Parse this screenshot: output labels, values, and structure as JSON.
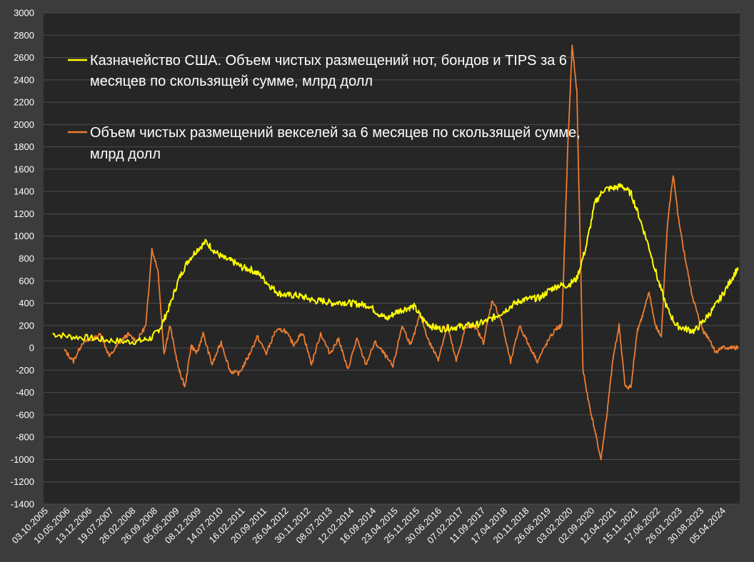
{
  "colors": {
    "background": "#3c3c3c",
    "plot_background": "#262626",
    "gridline": "#4e4e4e",
    "axis_text": "#ffffff",
    "series_notes_bonds": "#ffff00",
    "series_bills": "#ed7d31"
  },
  "chart_data": {
    "type": "line",
    "title": "",
    "xlabel": "",
    "ylabel": "",
    "ylim": [
      -1400,
      3000
    ],
    "y_ticks": [
      3000,
      2800,
      2600,
      2400,
      2200,
      2000,
      1800,
      1600,
      1400,
      1200,
      1000,
      800,
      600,
      400,
      200,
      0,
      -200,
      -400,
      -600,
      -800,
      -1000,
      -1200,
      -1400
    ],
    "x_range": [
      "2005-10-03",
      "2025-01-01"
    ],
    "x_tick_labels": [
      "03.10.2005",
      "10.05.2006",
      "13.12.2006",
      "19.07.2007",
      "26.02.2008",
      "26.09.2008",
      "05.05.2009",
      "08.12.2009",
      "14.07.2010",
      "16.02.2011",
      "20.09.2011",
      "26.04.2012",
      "30.11.2012",
      "08.07.2013",
      "12.02.2014",
      "16.09.2014",
      "23.04.2015",
      "25.11.2015",
      "30.06.2016",
      "07.02.2017",
      "11.09.2017",
      "17.04.2018",
      "20.11.2018",
      "26.06.2019",
      "03.02.2020",
      "02.09.2020",
      "12.04.2021",
      "15.11.2021",
      "17.06.2022",
      "26.01.2023",
      "30.08.2023",
      "05.04.2024"
    ],
    "grid": "horizontal",
    "legend": "top-left inside plot",
    "series": [
      {
        "name": "Казначейство США. Объем чистых размещений нот, бондов и TIPS за 6 месяцев по скользящей сумме, млрд долл",
        "color": "#ffff00",
        "x": [
          "2006-01-01",
          "2006-07-01",
          "2007-01-01",
          "2007-07-01",
          "2008-01-01",
          "2008-06-01",
          "2008-10-01",
          "2009-01-01",
          "2009-04-01",
          "2009-07-01",
          "2009-10-01",
          "2010-01-01",
          "2010-04-01",
          "2010-07-01",
          "2010-10-01",
          "2011-01-01",
          "2011-04-01",
          "2011-07-01",
          "2011-10-01",
          "2012-01-01",
          "2012-04-01",
          "2012-07-01",
          "2012-10-01",
          "2013-01-01",
          "2013-04-01",
          "2013-07-01",
          "2013-10-01",
          "2014-01-01",
          "2014-04-01",
          "2014-07-01",
          "2014-10-01",
          "2015-01-01",
          "2015-04-01",
          "2015-07-01",
          "2015-10-01",
          "2016-01-01",
          "2016-04-01",
          "2016-07-01",
          "2016-10-01",
          "2017-01-01",
          "2017-04-01",
          "2017-07-01",
          "2017-10-01",
          "2018-01-01",
          "2018-04-01",
          "2018-07-01",
          "2018-10-01",
          "2019-01-01",
          "2019-04-01",
          "2019-07-01",
          "2019-10-01",
          "2020-01-01",
          "2020-04-01",
          "2020-07-01",
          "2020-10-01",
          "2021-01-01",
          "2021-04-01",
          "2021-07-01",
          "2021-10-01",
          "2022-01-01",
          "2022-04-01",
          "2022-07-01",
          "2022-10-01",
          "2023-01-01",
          "2023-04-01",
          "2023-07-01",
          "2023-10-01",
          "2024-01-01",
          "2024-04-01",
          "2024-07-01",
          "2024-10-01",
          "2024-12-15"
        ],
        "values": [
          125,
          100,
          90,
          70,
          55,
          60,
          90,
          190,
          380,
          620,
          780,
          880,
          950,
          860,
          800,
          770,
          720,
          700,
          650,
          560,
          490,
          470,
          470,
          450,
          420,
          420,
          400,
          410,
          400,
          390,
          380,
          310,
          260,
          320,
          350,
          370,
          250,
          190,
          170,
          180,
          190,
          200,
          210,
          240,
          280,
          330,
          390,
          430,
          440,
          450,
          520,
          560,
          560,
          620,
          900,
          1300,
          1420,
          1430,
          1450,
          1380,
          1150,
          900,
          600,
          350,
          200,
          170,
          150,
          240,
          340,
          460,
          600,
          720
        ]
      },
      {
        "name": "Объем чистых размещений векселей за 6 месяцев по скользящей сумме, млрд долл",
        "color": "#ed7d31",
        "x": [
          "2006-05-01",
          "2006-08-01",
          "2006-11-01",
          "2007-02-01",
          "2007-05-01",
          "2007-08-01",
          "2007-11-01",
          "2008-02-01",
          "2008-05-01",
          "2008-08-01",
          "2008-10-01",
          "2008-12-01",
          "2009-02-01",
          "2009-04-01",
          "2009-07-01",
          "2009-09-01",
          "2009-11-01",
          "2010-01-01",
          "2010-03-01",
          "2010-06-01",
          "2010-09-01",
          "2010-12-01",
          "2011-03-01",
          "2011-06-01",
          "2011-09-01",
          "2011-12-01",
          "2012-03-01",
          "2012-06-01",
          "2012-09-01",
          "2012-12-01",
          "2013-03-01",
          "2013-06-01",
          "2013-09-01",
          "2013-12-01",
          "2014-03-01",
          "2014-06-01",
          "2014-09-01",
          "2014-12-01",
          "2015-03-01",
          "2015-06-01",
          "2015-09-01",
          "2015-12-01",
          "2016-03-01",
          "2016-06-01",
          "2016-09-01",
          "2016-12-01",
          "2017-03-01",
          "2017-06-01",
          "2017-09-01",
          "2017-12-01",
          "2018-03-01",
          "2018-06-01",
          "2018-09-01",
          "2018-12-01",
          "2019-03-01",
          "2019-06-01",
          "2019-09-01",
          "2019-12-01",
          "2020-02-01",
          "2020-04-01",
          "2020-05-15",
          "2020-07-01",
          "2020-09-01",
          "2020-11-01",
          "2021-01-01",
          "2021-03-01",
          "2021-05-01",
          "2021-07-01",
          "2021-09-01",
          "2021-11-01",
          "2022-01-01",
          "2022-03-01",
          "2022-05-01",
          "2022-07-01",
          "2022-09-01",
          "2022-11-01",
          "2023-01-01",
          "2023-03-01",
          "2023-05-01",
          "2023-07-01",
          "2023-09-01",
          "2023-11-01",
          "2024-01-01",
          "2024-03-01",
          "2024-05-01",
          "2024-07-01",
          "2024-09-01",
          "2024-11-01",
          "2024-12-15"
        ],
        "values": [
          -20,
          -120,
          50,
          70,
          120,
          -80,
          40,
          120,
          60,
          200,
          880,
          700,
          -50,
          200,
          -200,
          -350,
          20,
          -50,
          130,
          -150,
          50,
          -210,
          -230,
          -80,
          100,
          -50,
          150,
          160,
          30,
          140,
          -150,
          130,
          -50,
          80,
          -200,
          80,
          -150,
          50,
          -50,
          -170,
          200,
          20,
          300,
          50,
          -100,
          200,
          -120,
          180,
          200,
          50,
          430,
          240,
          -130,
          200,
          30,
          -120,
          40,
          170,
          200,
          1800,
          2700,
          2300,
          -200,
          -500,
          -750,
          -1000,
          -600,
          -100,
          200,
          -350,
          -350,
          150,
          300,
          500,
          200,
          100,
          1100,
          1550,
          1100,
          800,
          500,
          300,
          150,
          80,
          -40,
          0,
          0,
          0,
          0
        ]
      }
    ]
  }
}
